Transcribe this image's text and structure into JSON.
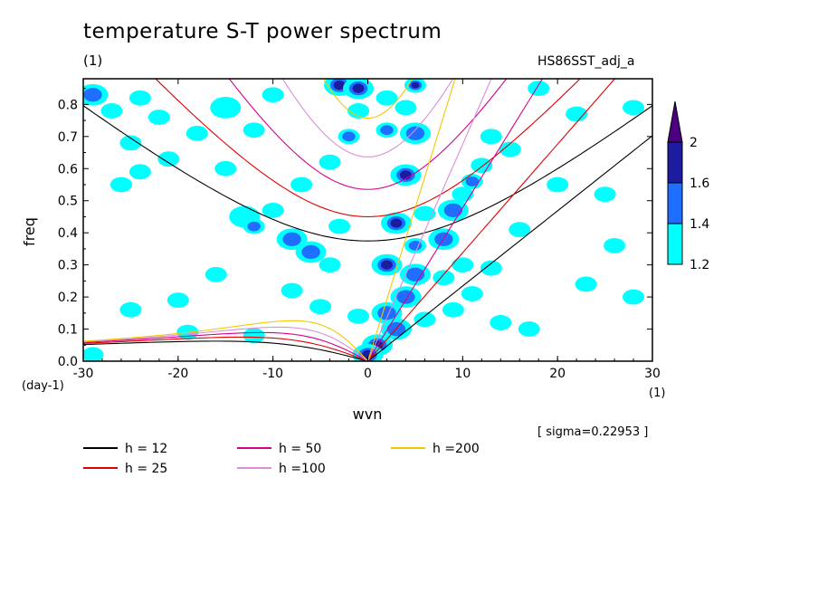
{
  "title": "temperature S-T power spectrum",
  "unit_label": "(1)",
  "dataset_label": "HS86SST_adj_a",
  "sigma_label": "[ sigma=0.22953 ]",
  "chart_data": {
    "type": "heatmap",
    "title": "temperature S-T power spectrum",
    "xlabel": "wvn",
    "ylabel": "freq",
    "x_unit": "(1)",
    "y_unit": "(day-1)",
    "xlim": [
      -30,
      30
    ],
    "ylim": [
      0,
      0.88
    ],
    "x_ticks": [
      -30,
      -20,
      -10,
      0,
      10,
      20,
      30
    ],
    "y_ticks": [
      0.0,
      0.1,
      0.2,
      0.3,
      0.4,
      0.5,
      0.6,
      0.7,
      0.8
    ],
    "colorbar": {
      "levels": [
        1.2,
        1.4,
        1.6,
        2
      ],
      "colors": [
        "#00ffff",
        "#1e6eff",
        "#1c1ca0",
        "#4b0082"
      ],
      "extend": "max"
    },
    "dispersion_curves": [
      {
        "name": "h = 12",
        "color": "#000000",
        "h": 12
      },
      {
        "name": "h = 25",
        "color": "#e00000",
        "h": 25
      },
      {
        "name": "h = 50",
        "color": "#d6008f",
        "h": 50
      },
      {
        "name": "h =100",
        "color": "#d98fd9",
        "h": 100
      },
      {
        "name": "h =200",
        "color": "#f0c800",
        "h": 200
      }
    ],
    "blobs": [
      [
        -29,
        0.83,
        2,
        2
      ],
      [
        -27,
        0.78,
        1,
        1
      ],
      [
        -24,
        0.82,
        1,
        1
      ],
      [
        -22,
        0.76,
        1,
        1
      ],
      [
        -25,
        0.68,
        1,
        1
      ],
      [
        -24,
        0.59,
        1,
        1
      ],
      [
        -21,
        0.63,
        1,
        1
      ],
      [
        -18,
        0.71,
        1,
        1
      ],
      [
        -15,
        0.79,
        2,
        1
      ],
      [
        -12,
        0.72,
        1,
        1
      ],
      [
        -10,
        0.83,
        1,
        1
      ],
      [
        -13,
        0.45,
        2,
        1
      ],
      [
        -12,
        0.42,
        1,
        2
      ],
      [
        -10,
        0.47,
        1,
        1
      ],
      [
        -8,
        0.38,
        2,
        2
      ],
      [
        -6,
        0.34,
        2,
        2
      ],
      [
        -4,
        0.3,
        1,
        1
      ],
      [
        -3,
        0.42,
        1,
        1
      ],
      [
        -7,
        0.55,
        1,
        1
      ],
      [
        -4,
        0.62,
        1,
        1
      ],
      [
        -2,
        0.7,
        1,
        2
      ],
      [
        -1,
        0.78,
        1,
        1
      ],
      [
        -3,
        0.86,
        2,
        3
      ],
      [
        -1,
        0.85,
        2,
        3
      ],
      [
        2,
        0.82,
        1,
        1
      ],
      [
        4,
        0.79,
        1,
        1
      ],
      [
        5,
        0.86,
        1,
        3
      ],
      [
        2,
        0.72,
        1,
        2
      ],
      [
        5,
        0.71,
        2,
        2
      ],
      [
        4,
        0.58,
        2,
        3
      ],
      [
        3,
        0.43,
        2,
        3
      ],
      [
        6,
        0.46,
        1,
        1
      ],
      [
        5,
        0.36,
        1,
        2
      ],
      [
        2,
        0.3,
        2,
        3
      ],
      [
        5,
        0.27,
        2,
        2
      ],
      [
        4,
        0.2,
        2,
        2
      ],
      [
        2,
        0.15,
        2,
        2
      ],
      [
        3,
        0.1,
        2,
        2
      ],
      [
        1,
        0.05,
        2,
        3
      ],
      [
        0,
        0.02,
        2,
        3
      ],
      [
        6,
        0.13,
        1,
        1
      ],
      [
        8,
        0.38,
        2,
        2
      ],
      [
        9,
        0.47,
        2,
        2
      ],
      [
        10,
        0.52,
        1,
        1
      ],
      [
        11,
        0.56,
        1,
        2
      ],
      [
        12,
        0.61,
        1,
        1
      ],
      [
        13,
        0.7,
        1,
        1
      ],
      [
        8,
        0.26,
        1,
        1
      ],
      [
        10,
        0.3,
        1,
        1
      ],
      [
        9,
        0.16,
        1,
        1
      ],
      [
        11,
        0.21,
        1,
        1
      ],
      [
        13,
        0.29,
        1,
        1
      ],
      [
        14,
        0.12,
        1,
        1
      ],
      [
        17,
        0.1,
        1,
        1
      ],
      [
        20,
        0.55,
        1,
        1
      ],
      [
        25,
        0.52,
        1,
        1
      ],
      [
        26,
        0.36,
        1,
        1
      ],
      [
        28,
        0.79,
        1,
        1
      ],
      [
        28,
        0.2,
        1,
        1
      ],
      [
        -25,
        0.16,
        1,
        1
      ],
      [
        -20,
        0.19,
        1,
        1
      ],
      [
        -16,
        0.27,
        1,
        1
      ],
      [
        -19,
        0.09,
        1,
        1
      ],
      [
        -12,
        0.08,
        1,
        1
      ],
      [
        -8,
        0.22,
        1,
        1
      ],
      [
        -5,
        0.17,
        1,
        1
      ],
      [
        -26,
        0.55,
        1,
        1
      ],
      [
        -29,
        0.02,
        1,
        1
      ],
      [
        18,
        0.85,
        1,
        1
      ],
      [
        22,
        0.77,
        1,
        1
      ],
      [
        23,
        0.24,
        1,
        1
      ],
      [
        16,
        0.41,
        1,
        1
      ],
      [
        -1,
        0.14,
        1,
        1
      ],
      [
        15,
        0.66,
        1,
        1
      ],
      [
        -15,
        0.6,
        1,
        1
      ]
    ]
  },
  "legend": {
    "items": [
      {
        "label": "h = 12",
        "color": "#000000"
      },
      {
        "label": "h = 25",
        "color": "#e00000"
      },
      {
        "label": "h = 50",
        "color": "#d6008f"
      },
      {
        "label": "h =100",
        "color": "#d98fd9"
      },
      {
        "label": "h =200",
        "color": "#f0c800"
      }
    ]
  }
}
